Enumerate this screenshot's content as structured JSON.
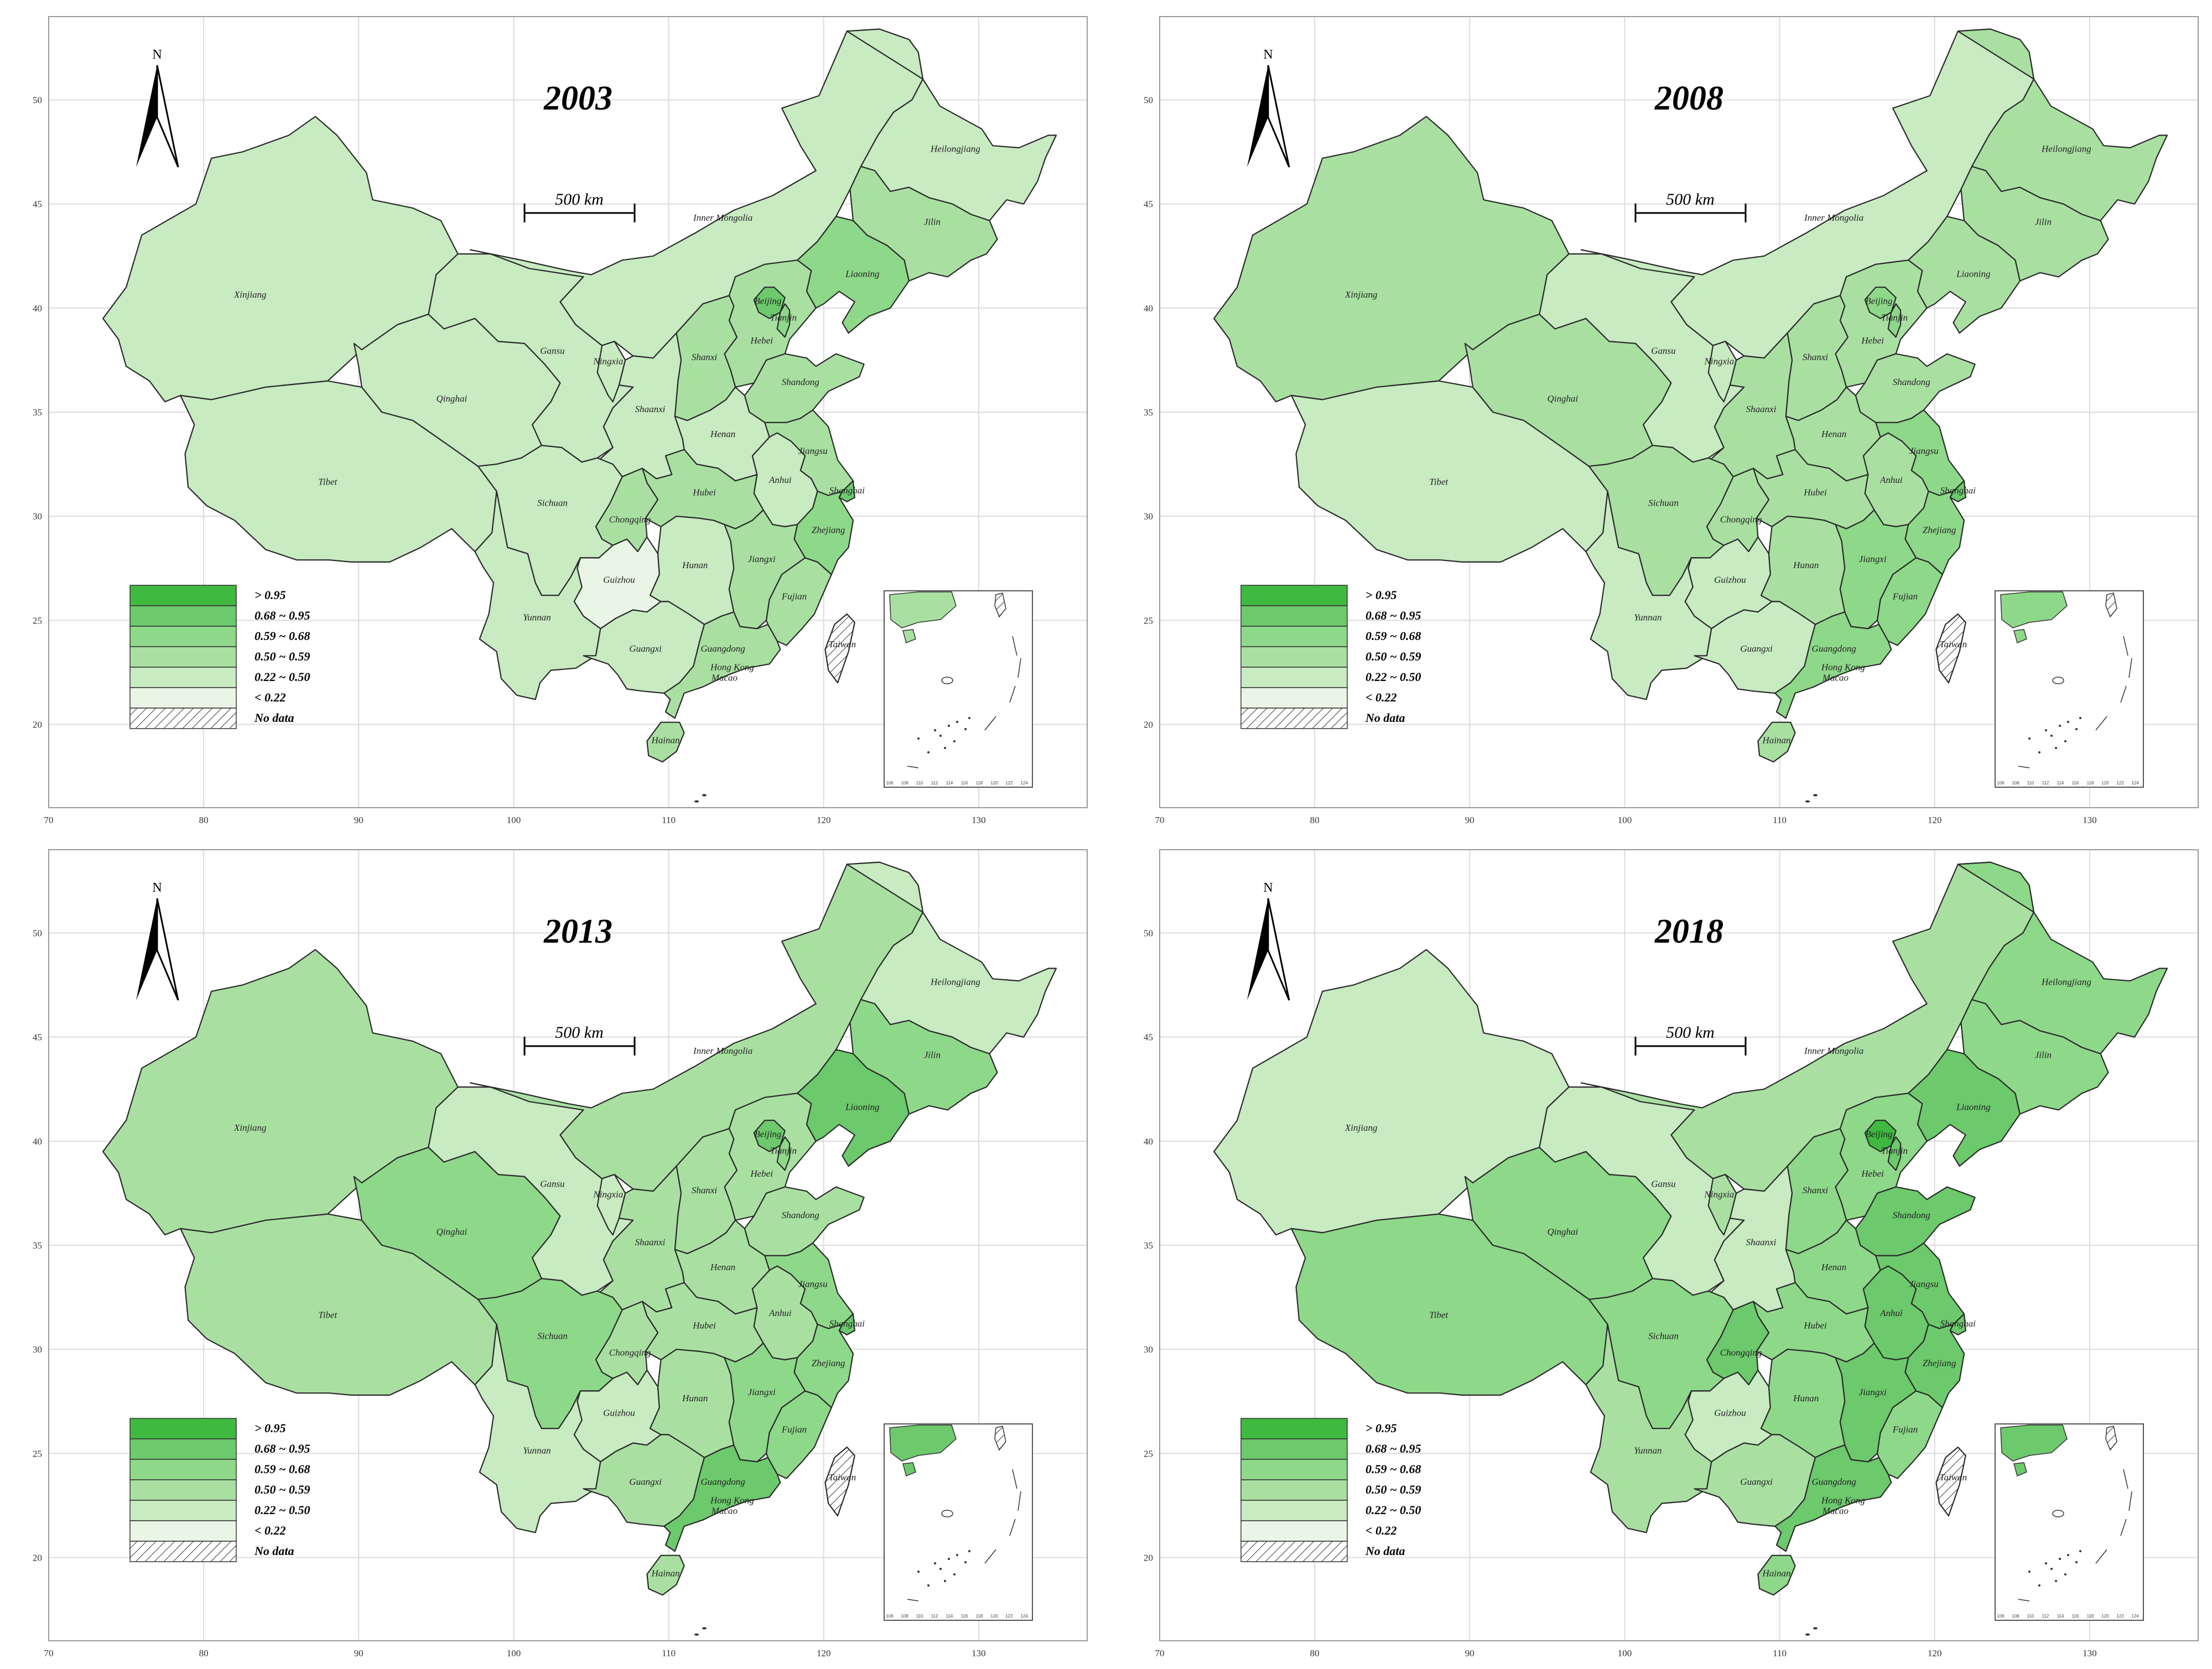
{
  "legend_classes": [
    {
      "label": "> 0.95",
      "color": "#3fb93f"
    },
    {
      "label": "0.68 ~ 0.95",
      "color": "#6cc96c"
    },
    {
      "label": "0.59 ~ 0.68",
      "color": "#8ed88a"
    },
    {
      "label": "0.50 ~ 0.59",
      "color": "#a9e0a2"
    },
    {
      "label": "0.22 ~ 0.50",
      "color": "#c8ebc2"
    },
    {
      "label": "< 0.22",
      "color": "#e9f6e6"
    },
    {
      "label": "No data",
      "color": "hatch"
    }
  ],
  "north_label": "N",
  "scale_label": "500 km",
  "lon_ticks": [
    "70",
    "80",
    "90",
    "100",
    "110",
    "120",
    "130"
  ],
  "lat_ticks": [
    "20",
    "25",
    "30",
    "35",
    "40",
    "45",
    "50"
  ],
  "inset_ticks": [
    "106",
    "108",
    "110",
    "112",
    "114",
    "116",
    "118",
    "120",
    "122",
    "124"
  ],
  "province_names": {
    "xinjiang": "Xinjiang",
    "tibet": "Tibet",
    "qinghai": "Qinghai",
    "gansu": "Gansu",
    "innermongolia": "Inner Mongolia",
    "heilongjiang": "Heilongjiang",
    "jilin": "Jilin",
    "liaoning": "Liaoning",
    "beijing": "Beijing",
    "hebei": "Hebei",
    "tianjin": "Tianjin",
    "shanxi": "Shanxi",
    "shandong": "Shandong",
    "ningxia": "Ningxia",
    "shaanxi": "Shaanxi",
    "henan": "Henan",
    "jiangsu": "Jiangsu",
    "shanghai": "Shanghai",
    "anhui": "Anhui",
    "hubei": "Hubei",
    "sichuan": "Sichuan",
    "chongqing": "Chongqing",
    "zhejiang": "Zhejiang",
    "guizhou": "Guizhou",
    "hunan": "Hunan",
    "jiangxi": "Jiangxi",
    "fujian": "Fujian",
    "yunnan": "Yunnan",
    "guangxi": "Guangxi",
    "guangdong": "Guangdong",
    "hongkong": "Hong Kong",
    "macao": "Macao",
    "hainan": "Hainan",
    "taiwan": "Taiwan"
  },
  "maps": [
    {
      "year": "2003",
      "class_by_province": {
        "xinjiang": 4,
        "tibet": 4,
        "qinghai": 4,
        "gansu": 4,
        "innermongolia": 4,
        "heilongjiang": 4,
        "jilin": 3,
        "liaoning": 2,
        "beijing": 1,
        "hebei": 3,
        "tianjin": 2,
        "shanxi": 3,
        "shandong": 3,
        "ningxia": 4,
        "shaanxi": 4,
        "henan": 4,
        "jiangsu": 3,
        "shanghai": 1,
        "anhui": 4,
        "hubei": 3,
        "sichuan": 4,
        "chongqing": 3,
        "zhejiang": 2,
        "guizhou": 5,
        "hunan": 4,
        "jiangxi": 3,
        "fujian": 3,
        "yunnan": 4,
        "guangxi": 4,
        "guangdong": 3,
        "hainan": 3,
        "taiwan": 6
      }
    },
    {
      "year": "2008",
      "class_by_province": {
        "xinjiang": 3,
        "tibet": 4,
        "qinghai": 3,
        "gansu": 4,
        "innermongolia": 4,
        "heilongjiang": 3,
        "jilin": 3,
        "liaoning": 3,
        "beijing": 2,
        "hebei": 3,
        "tianjin": 2,
        "shanxi": 3,
        "shandong": 3,
        "ningxia": 4,
        "shaanxi": 3,
        "henan": 3,
        "jiangsu": 2,
        "shanghai": 1,
        "anhui": 3,
        "hubei": 3,
        "sichuan": 3,
        "chongqing": 3,
        "zhejiang": 2,
        "guizhou": 4,
        "hunan": 3,
        "jiangxi": 2,
        "fujian": 2,
        "yunnan": 4,
        "guangxi": 4,
        "guangdong": 2,
        "hainan": 3,
        "taiwan": 6
      }
    },
    {
      "year": "2013",
      "class_by_province": {
        "xinjiang": 3,
        "tibet": 3,
        "qinghai": 2,
        "gansu": 4,
        "innermongolia": 3,
        "heilongjiang": 4,
        "jilin": 2,
        "liaoning": 1,
        "beijing": 1,
        "hebei": 3,
        "tianjin": 2,
        "shanxi": 3,
        "shandong": 3,
        "ningxia": 4,
        "shaanxi": 3,
        "henan": 3,
        "jiangsu": 2,
        "shanghai": 1,
        "anhui": 3,
        "hubei": 3,
        "sichuan": 2,
        "chongqing": 3,
        "zhejiang": 2,
        "guizhou": 4,
        "hunan": 3,
        "jiangxi": 2,
        "fujian": 2,
        "yunnan": 4,
        "guangxi": 3,
        "guangdong": 1,
        "hainan": 3,
        "taiwan": 6
      }
    },
    {
      "year": "2018",
      "class_by_province": {
        "xinjiang": 4,
        "tibet": 2,
        "qinghai": 2,
        "gansu": 4,
        "innermongolia": 3,
        "heilongjiang": 2,
        "jilin": 2,
        "liaoning": 1,
        "beijing": 0,
        "hebei": 2,
        "tianjin": 1,
        "shanxi": 2,
        "shandong": 1,
        "ningxia": 3,
        "shaanxi": 4,
        "henan": 2,
        "jiangsu": 1,
        "shanghai": 1,
        "anhui": 1,
        "hubei": 2,
        "sichuan": 2,
        "chongqing": 1,
        "zhejiang": 1,
        "guizhou": 4,
        "hunan": 2,
        "jiangxi": 1,
        "fujian": 2,
        "yunnan": 3,
        "guangxi": 3,
        "guangdong": 1,
        "hainan": 2,
        "taiwan": 6
      }
    }
  ]
}
